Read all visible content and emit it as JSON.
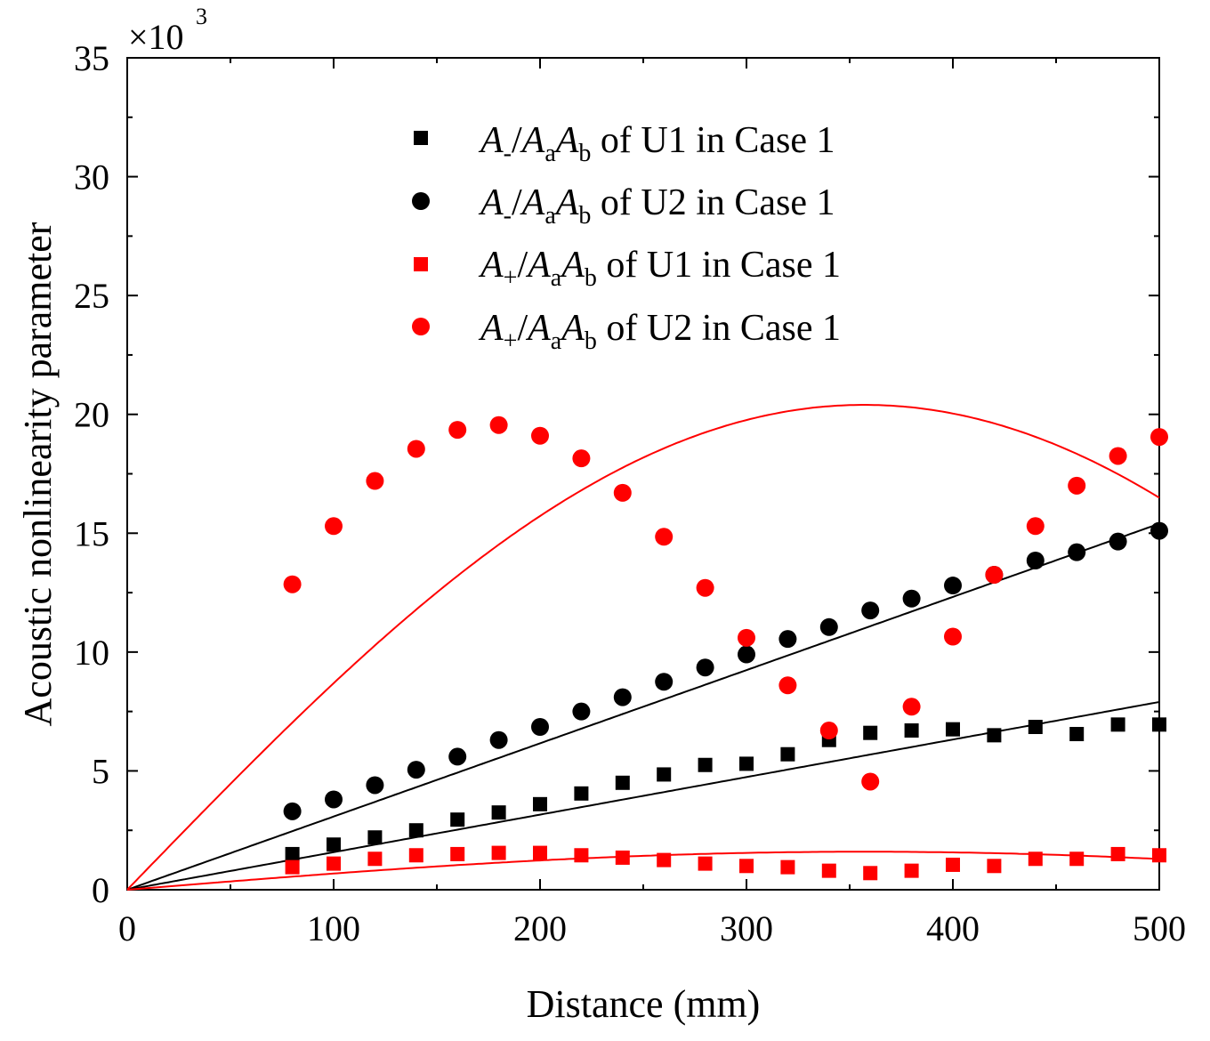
{
  "chart_data": {
    "type": "scatter",
    "title": "",
    "xlabel": "Distance (mm)",
    "ylabel": "Acoustic nonlinearity parameter",
    "xlim": [
      0,
      500
    ],
    "ylim": [
      0,
      35
    ],
    "y_scale_label": "×10",
    "y_scale_exponent": "3",
    "x_ticks": [
      "0",
      "100",
      "200",
      "300",
      "400",
      "500"
    ],
    "y_ticks": [
      "0",
      "5",
      "10",
      "15",
      "20",
      "25",
      "30",
      "35"
    ],
    "legend_position": "top-center",
    "series": [
      {
        "name": "A-/AaAb of U1 in Case 1",
        "legend": {
          "A1": "A",
          "s1": "-",
          "slash": "/",
          "A2": "A",
          "s2": "a",
          "A3": "A",
          "s3": "b",
          "rest": " of U1 in Case 1"
        },
        "marker": "square",
        "color": "#000000",
        "x": [
          80,
          100,
          120,
          140,
          160,
          180,
          200,
          220,
          240,
          260,
          280,
          300,
          320,
          340,
          360,
          380,
          400,
          420,
          440,
          460,
          480,
          500
        ],
        "y": [
          1.5,
          1.9,
          2.2,
          2.5,
          2.95,
          3.25,
          3.6,
          4.05,
          4.5,
          4.85,
          5.25,
          5.3,
          5.7,
          6.3,
          6.6,
          6.7,
          6.75,
          6.5,
          6.85,
          6.55,
          6.95,
          6.95
        ]
      },
      {
        "name": "A-/AaAb of U2 in Case 1",
        "legend": {
          "A1": "A",
          "s1": "-",
          "slash": "/",
          "A2": "A",
          "s2": "a",
          "A3": "A",
          "s3": "b",
          "rest": " of U2 in Case 1"
        },
        "marker": "circle",
        "color": "#000000",
        "x": [
          80,
          100,
          120,
          140,
          160,
          180,
          200,
          220,
          240,
          260,
          280,
          300,
          320,
          340,
          360,
          380,
          400,
          420,
          440,
          460,
          480,
          500
        ],
        "y": [
          3.3,
          3.8,
          4.4,
          5.05,
          5.6,
          6.3,
          6.85,
          7.5,
          8.1,
          8.75,
          9.35,
          9.9,
          10.55,
          11.05,
          11.75,
          12.25,
          12.8,
          13.25,
          13.85,
          14.2,
          14.65,
          15.1
        ]
      },
      {
        "name": "A+/AaAb of U1 in Case 1",
        "legend": {
          "A1": "A",
          "s1": "+",
          "slash": "/",
          "A2": "A",
          "s2": "a",
          "A3": "A",
          "s3": "b",
          "rest": " of U1 in Case 1"
        },
        "marker": "square",
        "color": "#ff0000",
        "x": [
          80,
          100,
          120,
          140,
          160,
          180,
          200,
          220,
          240,
          260,
          280,
          300,
          320,
          340,
          360,
          380,
          400,
          420,
          440,
          460,
          480,
          500
        ],
        "y": [
          0.95,
          1.1,
          1.3,
          1.45,
          1.5,
          1.55,
          1.55,
          1.45,
          1.35,
          1.25,
          1.1,
          1.0,
          0.95,
          0.8,
          0.7,
          0.8,
          1.05,
          1.0,
          1.3,
          1.3,
          1.5,
          1.45
        ]
      },
      {
        "name": "A+/AaAb of U2 in Case 1",
        "legend": {
          "A1": "A",
          "s1": "+",
          "slash": "/",
          "A2": "A",
          "s2": "a",
          "A3": "A",
          "s3": "b",
          "rest": " of U2 in Case 1"
        },
        "marker": "circle",
        "color": "#ff0000",
        "x": [
          80,
          100,
          120,
          140,
          160,
          180,
          200,
          220,
          240,
          260,
          280,
          300,
          320,
          340,
          360,
          380,
          400,
          420,
          440,
          460,
          480,
          500
        ],
        "y": [
          12.85,
          15.3,
          17.2,
          18.55,
          19.35,
          19.55,
          19.1,
          18.15,
          16.7,
          14.85,
          12.7,
          10.6,
          8.6,
          6.7,
          4.55,
          7.7,
          10.65,
          13.25,
          15.3,
          17.0,
          18.25,
          19.05
        ]
      }
    ],
    "fit_lines": [
      {
        "name": "fit-U2-minus",
        "color": "#000000",
        "type": "linear",
        "slope": 0.0308
      },
      {
        "name": "fit-U1-minus",
        "color": "#000000",
        "type": "linear",
        "slope": 0.0158
      },
      {
        "name": "fit-U2-plus",
        "color": "#ff0000",
        "type": "abs-sine",
        "amplitude": 20.4,
        "period": 714
      },
      {
        "name": "fit-U1-plus",
        "color": "#ff0000",
        "type": "abs-sine",
        "amplitude": 1.6,
        "period": 714
      }
    ]
  }
}
